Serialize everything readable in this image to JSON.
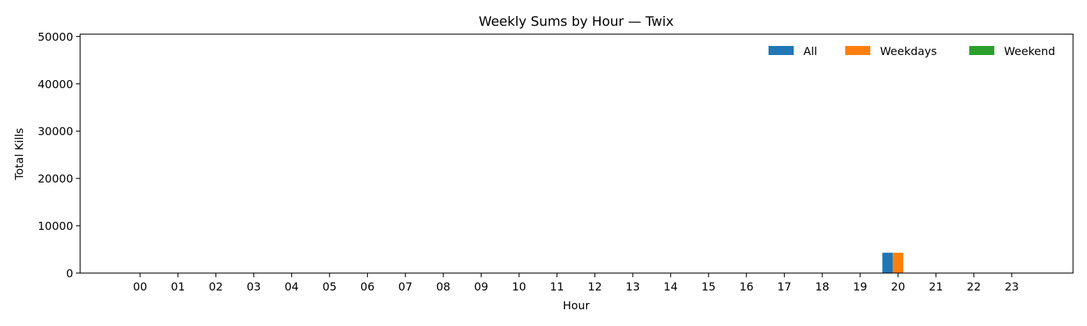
{
  "chart_data": {
    "type": "bar",
    "title": "Weekly Sums by Hour — Twix",
    "xlabel": "Hour",
    "ylabel": "Total Kills",
    "categories": [
      "00",
      "01",
      "02",
      "03",
      "04",
      "05",
      "06",
      "07",
      "08",
      "09",
      "10",
      "11",
      "12",
      "13",
      "14",
      "15",
      "16",
      "17",
      "18",
      "19",
      "20",
      "21",
      "22",
      "23"
    ],
    "series": [
      {
        "name": "All",
        "color": "#1f77b4",
        "values": [
          0,
          0,
          0,
          0,
          0,
          0,
          0,
          0,
          0,
          0,
          0,
          0,
          0,
          0,
          0,
          0,
          0,
          0,
          0,
          0,
          4300,
          0,
          0,
          0
        ]
      },
      {
        "name": "Weekdays",
        "color": "#ff7f0e",
        "values": [
          0,
          0,
          0,
          0,
          0,
          0,
          0,
          0,
          0,
          0,
          0,
          0,
          0,
          0,
          0,
          0,
          0,
          0,
          0,
          0,
          4300,
          0,
          0,
          0
        ]
      },
      {
        "name": "Weekend",
        "color": "#2ca02c",
        "values": [
          0,
          0,
          0,
          0,
          0,
          0,
          0,
          0,
          0,
          0,
          0,
          0,
          0,
          0,
          0,
          0,
          0,
          0,
          0,
          0,
          0,
          0,
          0,
          0
        ]
      }
    ],
    "ylim": [
      0,
      50500
    ],
    "yticks": [
      0,
      10000,
      20000,
      30000,
      40000,
      50000
    ],
    "grid": false,
    "legend_position": "top-right"
  }
}
